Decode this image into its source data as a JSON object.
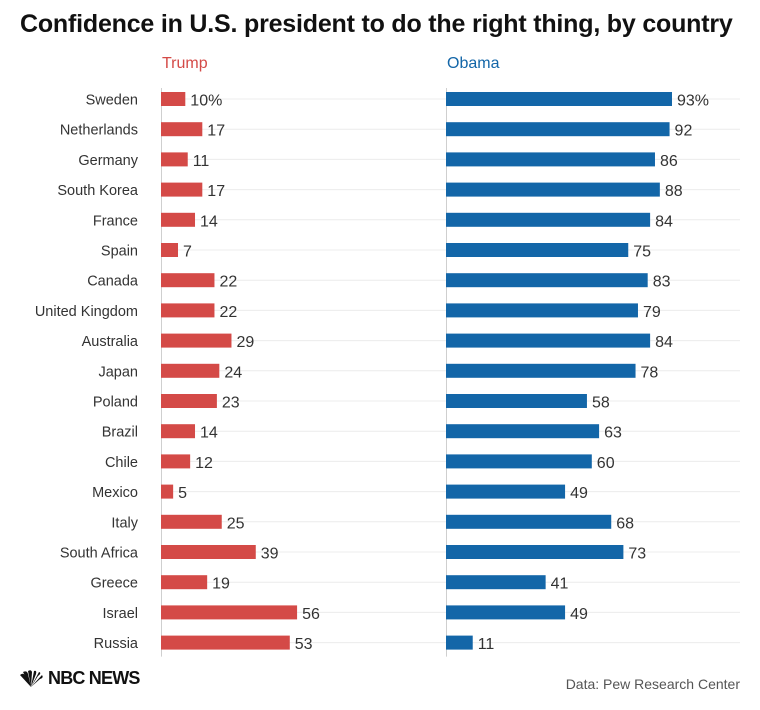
{
  "chart_data": {
    "type": "bar",
    "title": "Confidence in U.S. president to do the right thing, by country",
    "categories": [
      "Sweden",
      "Netherlands",
      "Germany",
      "South Korea",
      "France",
      "Spain",
      "Canada",
      "United Kingdom",
      "Australia",
      "Japan",
      "Poland",
      "Brazil",
      "Chile",
      "Mexico",
      "Italy",
      "South Africa",
      "Greece",
      "Israel",
      "Russia"
    ],
    "series": [
      {
        "name": "Trump",
        "color": "#d44a47",
        "values": [
          10,
          17,
          11,
          17,
          14,
          7,
          22,
          22,
          29,
          24,
          23,
          14,
          12,
          5,
          25,
          39,
          19,
          56,
          53
        ],
        "labels": [
          "10%",
          "17",
          "11",
          "17",
          "14",
          "7",
          "22",
          "22",
          "29",
          "24",
          "23",
          "14",
          "12",
          "5",
          "25",
          "39",
          "19",
          "56",
          "53"
        ]
      },
      {
        "name": "Obama",
        "color": "#1366a8",
        "values": [
          93,
          92,
          86,
          88,
          84,
          75,
          83,
          79,
          84,
          78,
          58,
          63,
          60,
          49,
          68,
          73,
          41,
          49,
          11
        ],
        "labels": [
          "93%",
          "92",
          "86",
          "88",
          "84",
          "75",
          "83",
          "79",
          "84",
          "78",
          "58",
          "63",
          "60",
          "49",
          "68",
          "73",
          "41",
          "49",
          "11"
        ]
      }
    ],
    "orientation": "horizontal",
    "grid": true
  },
  "footer": {
    "logo_text": "NBC NEWS",
    "source": "Data: Pew Research Center"
  },
  "icons": {
    "logo": "nbc-peacock-icon"
  }
}
